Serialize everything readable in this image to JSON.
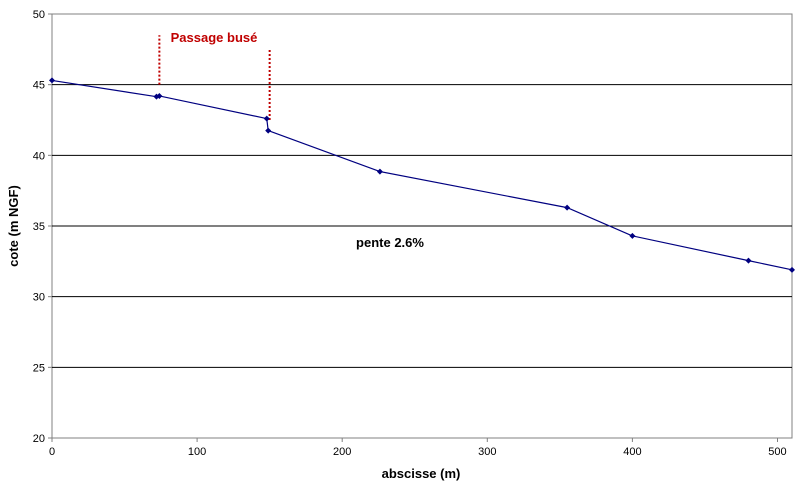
{
  "chart_data": {
    "type": "line",
    "title": "",
    "xlabel": "abscisse (m)",
    "ylabel": "cote (m NGF)",
    "xlim": [
      0,
      510
    ],
    "ylim": [
      20,
      50
    ],
    "xticks": [
      0,
      100,
      200,
      300,
      400,
      500
    ],
    "yticks": [
      20,
      25,
      30,
      35,
      40,
      45,
      50
    ],
    "grid": "horizontal",
    "series": [
      {
        "color": "#000080",
        "points": [
          {
            "x": 0,
            "y": 45.3
          },
          {
            "x": 72,
            "y": 44.15
          },
          {
            "x": 74,
            "y": 44.2
          },
          {
            "x": 148,
            "y": 42.6
          },
          {
            "x": 149,
            "y": 41.75
          },
          {
            "x": 226,
            "y": 38.85
          },
          {
            "x": 355,
            "y": 36.3
          },
          {
            "x": 400,
            "y": 34.3
          },
          {
            "x": 480,
            "y": 32.55
          },
          {
            "x": 510,
            "y": 31.9
          }
        ]
      }
    ],
    "annotations": [
      {
        "text": "Passage busé",
        "color": "#c00000"
      },
      {
        "text": "pente 2.6%",
        "color": "#000000"
      }
    ],
    "markers": [
      {
        "x": 74,
        "y_from": 45,
        "y_to": 48.5,
        "color": "#c00000",
        "style": "dotted"
      },
      {
        "x": 150,
        "y_from": 42.5,
        "y_to": 47.5,
        "color": "#c00000",
        "style": "dotted"
      }
    ]
  }
}
